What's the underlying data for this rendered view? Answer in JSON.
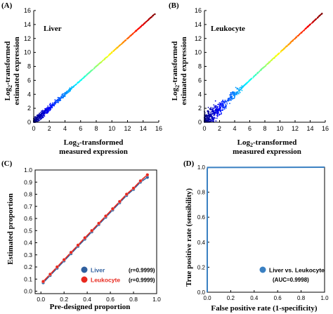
{
  "colors": {
    "liver": "#2f5f9e",
    "leukocyte": "#e8281e",
    "roc_line": "#3a80c2",
    "axis": "#000000"
  },
  "chart_data": [
    {
      "panel_label": "(A)",
      "type": "scatter",
      "annotation": "Liver",
      "xlabel": [
        "Log",
        "2",
        "-transformed"
      ],
      "xlabel2": "measured expression",
      "ylabel": [
        "Log",
        "2",
        "-transformed"
      ],
      "ylabel2": "estimated expression",
      "xlim": [
        0,
        16
      ],
      "ylim": [
        0,
        16
      ],
      "xticks": [
        0,
        2,
        4,
        6,
        8,
        10,
        12,
        14,
        16
      ],
      "yticks": [
        0,
        2,
        4,
        6,
        8,
        10,
        12,
        14,
        16
      ],
      "colormap": "jet (density)",
      "points_description": "dense cloud along y = x from 0 to 16",
      "spread_low": 0.35,
      "spread_high": 0.05
    },
    {
      "panel_label": "(B)",
      "type": "scatter",
      "annotation": "Leukocyte",
      "xlabel": [
        "Log",
        "2",
        "-transformed"
      ],
      "xlabel2": "measured expression",
      "ylabel": [
        "Log",
        "2",
        "-transformed"
      ],
      "ylabel2": "estimated expression",
      "xlim": [
        0,
        16
      ],
      "ylim": [
        0,
        16
      ],
      "xticks": [
        0,
        2,
        4,
        6,
        8,
        10,
        12,
        14,
        16
      ],
      "yticks": [
        0,
        2,
        4,
        6,
        8,
        10,
        12,
        14,
        16
      ],
      "colormap": "jet (density)",
      "points_description": "dense cloud along y = x from 0 to 16, wider spread below 5",
      "spread_low": 0.9,
      "spread_high": 0.05
    },
    {
      "panel_label": "(C)",
      "type": "line",
      "xlabel": "Pre-designed proportion",
      "ylabel": "Estimated proportion",
      "xlim": [
        -0.05,
        1.0
      ],
      "ylim": [
        -0.02,
        1.0
      ],
      "xticks": [
        0.0,
        0.2,
        0.4,
        0.6,
        0.8,
        1.0
      ],
      "xtick_labels": [
        "0.0",
        "0.2",
        "0.4",
        "0.6",
        "0.8",
        "1.0"
      ],
      "yticks": [
        0.0,
        0.1,
        0.2,
        0.3,
        0.4,
        0.5,
        0.6,
        0.7,
        0.8,
        0.9,
        1.0
      ],
      "ytick_labels": [
        "0.0",
        "0.1",
        "0.2",
        "0.3",
        "0.4",
        "0.5",
        "0.6",
        "0.7",
        "0.8",
        "0.9",
        "1.0"
      ],
      "x": [
        0.02,
        0.08,
        0.14,
        0.2,
        0.26,
        0.32,
        0.38,
        0.44,
        0.5,
        0.56,
        0.62,
        0.68,
        0.74,
        0.8,
        0.86,
        0.92
      ],
      "series": [
        {
          "name": "Liver",
          "stat": "(r=0.9999)",
          "values": [
            0.07,
            0.13,
            0.19,
            0.25,
            0.31,
            0.37,
            0.43,
            0.49,
            0.55,
            0.61,
            0.67,
            0.73,
            0.79,
            0.84,
            0.9,
            0.94
          ]
        },
        {
          "name": "Leukocyte",
          "stat": "(r=0.9999)",
          "values": [
            0.08,
            0.14,
            0.2,
            0.26,
            0.32,
            0.38,
            0.44,
            0.5,
            0.56,
            0.62,
            0.68,
            0.74,
            0.8,
            0.85,
            0.91,
            0.96
          ]
        }
      ],
      "legend_position": "bottom-right"
    },
    {
      "panel_label": "(D)",
      "type": "line",
      "xlabel": "False positive rate (1-specificity)",
      "ylabel": "True positive rate (sensibility)",
      "xlim": [
        0,
        1
      ],
      "ylim": [
        0,
        1
      ],
      "xticks": [
        0,
        0.2,
        0.4,
        0.6,
        0.8,
        1.0
      ],
      "xtick_labels": [
        "0.0",
        "0.2",
        "0.4",
        "0.6",
        "0.8",
        "1.0"
      ],
      "yticks": [
        0,
        0.2,
        0.4,
        0.6,
        0.8,
        1.0
      ],
      "ytick_labels": [
        "0.0",
        "0.2",
        "0.4",
        "0.6",
        "0.8",
        "1.0"
      ],
      "series": [
        {
          "name": "Liver  vs. Leukocyte",
          "stat": "(AUC=0.9998)",
          "x": [
            0,
            0,
            0.003,
            1.0
          ],
          "y": [
            0,
            0.985,
            0.998,
            1.0
          ]
        }
      ],
      "legend_position": "bottom-right"
    }
  ]
}
